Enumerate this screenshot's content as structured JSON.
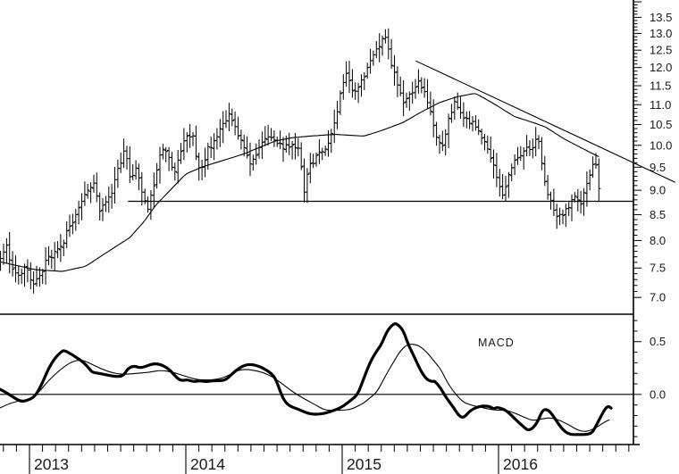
{
  "colors": {
    "background": "#fdfdfd",
    "ink": "#000000",
    "text": "#1a1a1a"
  },
  "chart_data": {
    "type": "ohlc",
    "title": "",
    "description": "Weekly OHLC price chart (log scale) with moving average, descending trendline, horizontal support line and MACD subpanel",
    "x_axis": {
      "years": [
        "2013",
        "2014",
        "2015",
        "2016"
      ],
      "minor_tick": "monthly",
      "t_start": 2012.81,
      "t_end": 2017.13
    },
    "price_panel": {
      "y_axis": {
        "scale": "log",
        "tick_labels": [
          "13.5",
          "13.0",
          "12.5",
          "12.0",
          "11.5",
          "11.0",
          "10.5",
          "10.0",
          "9.5",
          "9.0",
          "8.5",
          "8.0",
          "7.5",
          "7.0"
        ],
        "label_values": [
          13.5,
          13.0,
          12.5,
          12.0,
          11.5,
          11.0,
          10.5,
          10.0,
          9.5,
          9.0,
          8.5,
          8.0,
          7.5,
          7.0
        ],
        "minor_step": 0.1,
        "top_price": 14.06,
        "bottom_price": 6.73
      },
      "bar_frequency_per_year": 52,
      "bars_t_start": 2012.815,
      "bars_t_end": 2016.656,
      "weekly_close_anchors": [
        [
          2012.81,
          7.6
        ],
        [
          2012.85,
          7.95
        ],
        [
          2012.89,
          7.5
        ],
        [
          2012.93,
          7.35
        ],
        [
          2012.97,
          7.55
        ],
        [
          2013.02,
          7.2
        ],
        [
          2013.06,
          7.3
        ],
        [
          2013.1,
          7.6
        ],
        [
          2013.16,
          7.75
        ],
        [
          2013.22,
          8.0
        ],
        [
          2013.27,
          8.35
        ],
        [
          2013.32,
          8.7
        ],
        [
          2013.38,
          9.05
        ],
        [
          2013.41,
          9.15
        ],
        [
          2013.45,
          8.55
        ],
        [
          2013.49,
          8.75
        ],
        [
          2013.53,
          8.95
        ],
        [
          2013.57,
          9.5
        ],
        [
          2013.61,
          9.9
        ],
        [
          2013.65,
          9.2
        ],
        [
          2013.68,
          9.55
        ],
        [
          2013.72,
          9.0
        ],
        [
          2013.76,
          8.6
        ],
        [
          2013.8,
          9.2
        ],
        [
          2013.83,
          9.75
        ],
        [
          2013.86,
          9.9
        ],
        [
          2013.9,
          9.6
        ],
        [
          2013.93,
          9.45
        ],
        [
          2013.96,
          9.8
        ],
        [
          2014.0,
          10.2
        ],
        [
          2014.04,
          10.3
        ],
        [
          2014.07,
          9.6
        ],
        [
          2014.1,
          9.4
        ],
        [
          2014.14,
          9.9
        ],
        [
          2014.19,
          10.15
        ],
        [
          2014.24,
          10.5
        ],
        [
          2014.28,
          10.75
        ],
        [
          2014.32,
          10.4
        ],
        [
          2014.37,
          9.9
        ],
        [
          2014.41,
          9.6
        ],
        [
          2014.46,
          9.9
        ],
        [
          2014.5,
          10.1
        ],
        [
          2014.54,
          10.25
        ],
        [
          2014.58,
          10.1
        ],
        [
          2014.63,
          9.95
        ],
        [
          2014.68,
          10.0
        ],
        [
          2014.72,
          9.9
        ],
        [
          2014.76,
          8.9
        ],
        [
          2014.78,
          9.5
        ],
        [
          2014.82,
          9.65
        ],
        [
          2014.87,
          9.85
        ],
        [
          2014.91,
          10.0
        ],
        [
          2014.95,
          10.5
        ],
        [
          2014.99,
          11.3
        ],
        [
          2015.03,
          11.8
        ],
        [
          2015.07,
          11.3
        ],
        [
          2015.11,
          11.5
        ],
        [
          2015.15,
          11.9
        ],
        [
          2015.19,
          12.2
        ],
        [
          2015.23,
          12.6
        ],
        [
          2015.27,
          13.0
        ],
        [
          2015.29,
          12.7
        ],
        [
          2015.32,
          12.0
        ],
        [
          2015.36,
          11.4
        ],
        [
          2015.4,
          11.0
        ],
        [
          2015.44,
          11.3
        ],
        [
          2015.48,
          11.6
        ],
        [
          2015.52,
          11.4
        ],
        [
          2015.56,
          10.9
        ],
        [
          2015.6,
          10.2
        ],
        [
          2015.64,
          9.9
        ],
        [
          2015.68,
          10.6
        ],
        [
          2015.72,
          11.1
        ],
        [
          2015.76,
          10.8
        ],
        [
          2015.8,
          10.6
        ],
        [
          2015.84,
          10.5
        ],
        [
          2015.88,
          10.3
        ],
        [
          2015.92,
          10.1
        ],
        [
          2015.96,
          9.6
        ],
        [
          2016.0,
          9.2
        ],
        [
          2016.03,
          8.9
        ],
        [
          2016.06,
          9.3
        ],
        [
          2016.1,
          9.6
        ],
        [
          2016.14,
          9.8
        ],
        [
          2016.18,
          9.9
        ],
        [
          2016.22,
          10.0
        ],
        [
          2016.26,
          10.15
        ],
        [
          2016.29,
          9.2
        ],
        [
          2016.33,
          8.8
        ],
        [
          2016.37,
          8.5
        ],
        [
          2016.41,
          8.45
        ],
        [
          2016.45,
          8.7
        ],
        [
          2016.49,
          8.85
        ],
        [
          2016.53,
          8.7
        ],
        [
          2016.57,
          9.2
        ],
        [
          2016.6,
          9.55
        ],
        [
          2016.63,
          9.6
        ],
        [
          2016.655,
          8.5
        ]
      ],
      "moving_average": [
        [
          2012.81,
          7.61
        ],
        [
          2013.04,
          7.47
        ],
        [
          2013.21,
          7.44
        ],
        [
          2013.36,
          7.53
        ],
        [
          2013.5,
          7.79
        ],
        [
          2013.64,
          8.05
        ],
        [
          2013.73,
          8.35
        ],
        [
          2013.81,
          8.7
        ],
        [
          2013.9,
          9.0
        ],
        [
          2014.0,
          9.35
        ],
        [
          2014.1,
          9.5
        ],
        [
          2014.19,
          9.6
        ],
        [
          2014.3,
          9.72
        ],
        [
          2014.37,
          9.8
        ],
        [
          2014.47,
          9.95
        ],
        [
          2014.57,
          10.1
        ],
        [
          2014.68,
          10.18
        ],
        [
          2014.8,
          10.22
        ],
        [
          2014.95,
          10.26
        ],
        [
          2015.04,
          10.24
        ],
        [
          2015.14,
          10.22
        ],
        [
          2015.25,
          10.35
        ],
        [
          2015.39,
          10.55
        ],
        [
          2015.5,
          10.8
        ],
        [
          2015.62,
          11.05
        ],
        [
          2015.73,
          11.2
        ],
        [
          2015.85,
          11.3
        ],
        [
          2015.96,
          11.05
        ],
        [
          2016.1,
          10.7
        ],
        [
          2016.22,
          10.55
        ],
        [
          2016.3,
          10.44
        ],
        [
          2016.42,
          10.15
        ],
        [
          2016.53,
          9.94
        ],
        [
          2016.66,
          9.7
        ]
      ],
      "trendline": {
        "t1": 2015.47,
        "p1": 12.19,
        "t2": 2017.13,
        "p2": 9.17
      },
      "support_line": {
        "price": 8.77,
        "t1": 2013.63,
        "t2": 2016.863
      }
    },
    "macd_panel": {
      "label": "MACD",
      "y_axis": {
        "tick_labels": [
          "0.5",
          "0.0"
        ],
        "label_values": [
          0.5,
          0.0
        ],
        "minor_step": 0.1,
        "top_value": 0.76,
        "bottom_value": -0.475
      },
      "macd_line": [
        [
          2012.81,
          0.05
        ],
        [
          2012.85,
          0.02
        ],
        [
          2012.91,
          -0.04
        ],
        [
          2012.95,
          -0.07
        ],
        [
          2013.0,
          -0.05
        ],
        [
          2013.04,
          -0.01
        ],
        [
          2013.08,
          0.1
        ],
        [
          2013.12,
          0.24
        ],
        [
          2013.16,
          0.34
        ],
        [
          2013.2,
          0.4
        ],
        [
          2013.22,
          0.42
        ],
        [
          2013.27,
          0.38
        ],
        [
          2013.31,
          0.34
        ],
        [
          2013.34,
          0.31
        ],
        [
          2013.38,
          0.25
        ],
        [
          2013.4,
          0.21
        ],
        [
          2013.44,
          0.2
        ],
        [
          2013.48,
          0.19
        ],
        [
          2013.54,
          0.17
        ],
        [
          2013.6,
          0.17
        ],
        [
          2013.63,
          0.25
        ],
        [
          2013.67,
          0.27
        ],
        [
          2013.71,
          0.25
        ],
        [
          2013.75,
          0.27
        ],
        [
          2013.79,
          0.29
        ],
        [
          2013.82,
          0.29
        ],
        [
          2013.86,
          0.27
        ],
        [
          2013.9,
          0.23
        ],
        [
          2013.94,
          0.16
        ],
        [
          2013.97,
          0.13
        ],
        [
          2014.01,
          0.14
        ],
        [
          2014.05,
          0.12
        ],
        [
          2014.09,
          0.13
        ],
        [
          2014.13,
          0.12
        ],
        [
          2014.17,
          0.13
        ],
        [
          2014.22,
          0.13
        ],
        [
          2014.26,
          0.14
        ],
        [
          2014.32,
          0.23
        ],
        [
          2014.39,
          0.29
        ],
        [
          2014.47,
          0.27
        ],
        [
          2014.55,
          0.2
        ],
        [
          2014.58,
          0.13
        ],
        [
          2014.62,
          -0.04
        ],
        [
          2014.66,
          -0.11
        ],
        [
          2014.72,
          -0.14
        ],
        [
          2014.78,
          -0.18
        ],
        [
          2014.83,
          -0.19
        ],
        [
          2014.89,
          -0.18
        ],
        [
          2014.95,
          -0.15
        ],
        [
          2015.0,
          -0.12
        ],
        [
          2015.06,
          -0.05
        ],
        [
          2015.1,
          0.0
        ],
        [
          2015.14,
          0.16
        ],
        [
          2015.18,
          0.31
        ],
        [
          2015.22,
          0.41
        ],
        [
          2015.25,
          0.47
        ],
        [
          2015.29,
          0.61
        ],
        [
          2015.33,
          0.67
        ],
        [
          2015.35,
          0.67
        ],
        [
          2015.39,
          0.61
        ],
        [
          2015.42,
          0.48
        ],
        [
          2015.46,
          0.36
        ],
        [
          2015.5,
          0.23
        ],
        [
          2015.54,
          0.14
        ],
        [
          2015.58,
          0.12
        ],
        [
          2015.59,
          0.13
        ],
        [
          2015.63,
          0.06
        ],
        [
          2015.66,
          -0.02
        ],
        [
          2015.71,
          -0.12
        ],
        [
          2015.75,
          -0.21
        ],
        [
          2015.78,
          -0.22
        ],
        [
          2015.82,
          -0.15
        ],
        [
          2015.88,
          -0.11
        ],
        [
          2015.94,
          -0.11
        ],
        [
          2015.97,
          -0.14
        ],
        [
          2015.99,
          -0.12
        ],
        [
          2016.05,
          -0.15
        ],
        [
          2016.11,
          -0.24
        ],
        [
          2016.17,
          -0.32
        ],
        [
          2016.19,
          -0.34
        ],
        [
          2016.22,
          -0.32
        ],
        [
          2016.25,
          -0.26
        ],
        [
          2016.28,
          -0.15
        ],
        [
          2016.31,
          -0.14
        ],
        [
          2016.34,
          -0.18
        ],
        [
          2016.4,
          -0.32
        ],
        [
          2016.45,
          -0.38
        ],
        [
          2016.51,
          -0.38
        ],
        [
          2016.57,
          -0.38
        ],
        [
          2016.6,
          -0.36
        ],
        [
          2016.62,
          -0.31
        ],
        [
          2016.65,
          -0.22
        ],
        [
          2016.68,
          -0.14
        ],
        [
          2016.7,
          -0.11
        ],
        [
          2016.72,
          -0.13
        ]
      ],
      "signal_line": [
        [
          2012.81,
          -0.13
        ],
        [
          2012.89,
          -0.07
        ],
        [
          2012.97,
          -0.06
        ],
        [
          2013.0,
          -0.05
        ],
        [
          2013.06,
          0.02
        ],
        [
          2013.12,
          0.13
        ],
        [
          2013.2,
          0.24
        ],
        [
          2013.27,
          0.31
        ],
        [
          2013.33,
          0.33
        ],
        [
          2013.38,
          0.3
        ],
        [
          2013.46,
          0.24
        ],
        [
          2013.54,
          0.2
        ],
        [
          2013.61,
          0.19
        ],
        [
          2013.69,
          0.2
        ],
        [
          2013.77,
          0.21
        ],
        [
          2013.84,
          0.23
        ],
        [
          2013.92,
          0.21
        ],
        [
          2014.0,
          0.17
        ],
        [
          2014.07,
          0.14
        ],
        [
          2014.15,
          0.135
        ],
        [
          2014.22,
          0.15
        ],
        [
          2014.26,
          0.17
        ],
        [
          2014.32,
          0.22
        ],
        [
          2014.37,
          0.24
        ],
        [
          2014.43,
          0.23
        ],
        [
          2014.49,
          0.21
        ],
        [
          2014.55,
          0.17
        ],
        [
          2014.6,
          0.12
        ],
        [
          2014.66,
          0.05
        ],
        [
          2014.72,
          -0.01
        ],
        [
          2014.78,
          -0.06
        ],
        [
          2014.83,
          -0.1
        ],
        [
          2014.89,
          -0.15
        ],
        [
          2014.95,
          -0.15
        ],
        [
          2015.0,
          -0.15
        ],
        [
          2015.06,
          -0.14
        ],
        [
          2015.1,
          -0.11
        ],
        [
          2015.14,
          -0.08
        ],
        [
          2015.18,
          -0.03
        ],
        [
          2015.22,
          0.02
        ],
        [
          2015.25,
          0.1
        ],
        [
          2015.29,
          0.21
        ],
        [
          2015.33,
          0.31
        ],
        [
          2015.37,
          0.41
        ],
        [
          2015.42,
          0.48
        ],
        [
          2015.48,
          0.47
        ],
        [
          2015.52,
          0.43
        ],
        [
          2015.56,
          0.37
        ],
        [
          2015.59,
          0.31
        ],
        [
          2015.63,
          0.24
        ],
        [
          2015.67,
          0.12
        ],
        [
          2015.71,
          0.03
        ],
        [
          2015.77,
          -0.07
        ],
        [
          2015.82,
          -0.1
        ],
        [
          2015.88,
          -0.12
        ],
        [
          2015.94,
          -0.14
        ],
        [
          2015.99,
          -0.15
        ],
        [
          2016.05,
          -0.15
        ],
        [
          2016.11,
          -0.18
        ],
        [
          2016.17,
          -0.22
        ],
        [
          2016.22,
          -0.25
        ],
        [
          2016.28,
          -0.23
        ],
        [
          2016.34,
          -0.22
        ],
        [
          2016.4,
          -0.25
        ],
        [
          2016.45,
          -0.29
        ],
        [
          2016.51,
          -0.34
        ],
        [
          2016.54,
          -0.35
        ],
        [
          2016.57,
          -0.35
        ],
        [
          2016.62,
          -0.32
        ],
        [
          2016.68,
          -0.26
        ],
        [
          2016.71,
          -0.24
        ]
      ]
    }
  }
}
